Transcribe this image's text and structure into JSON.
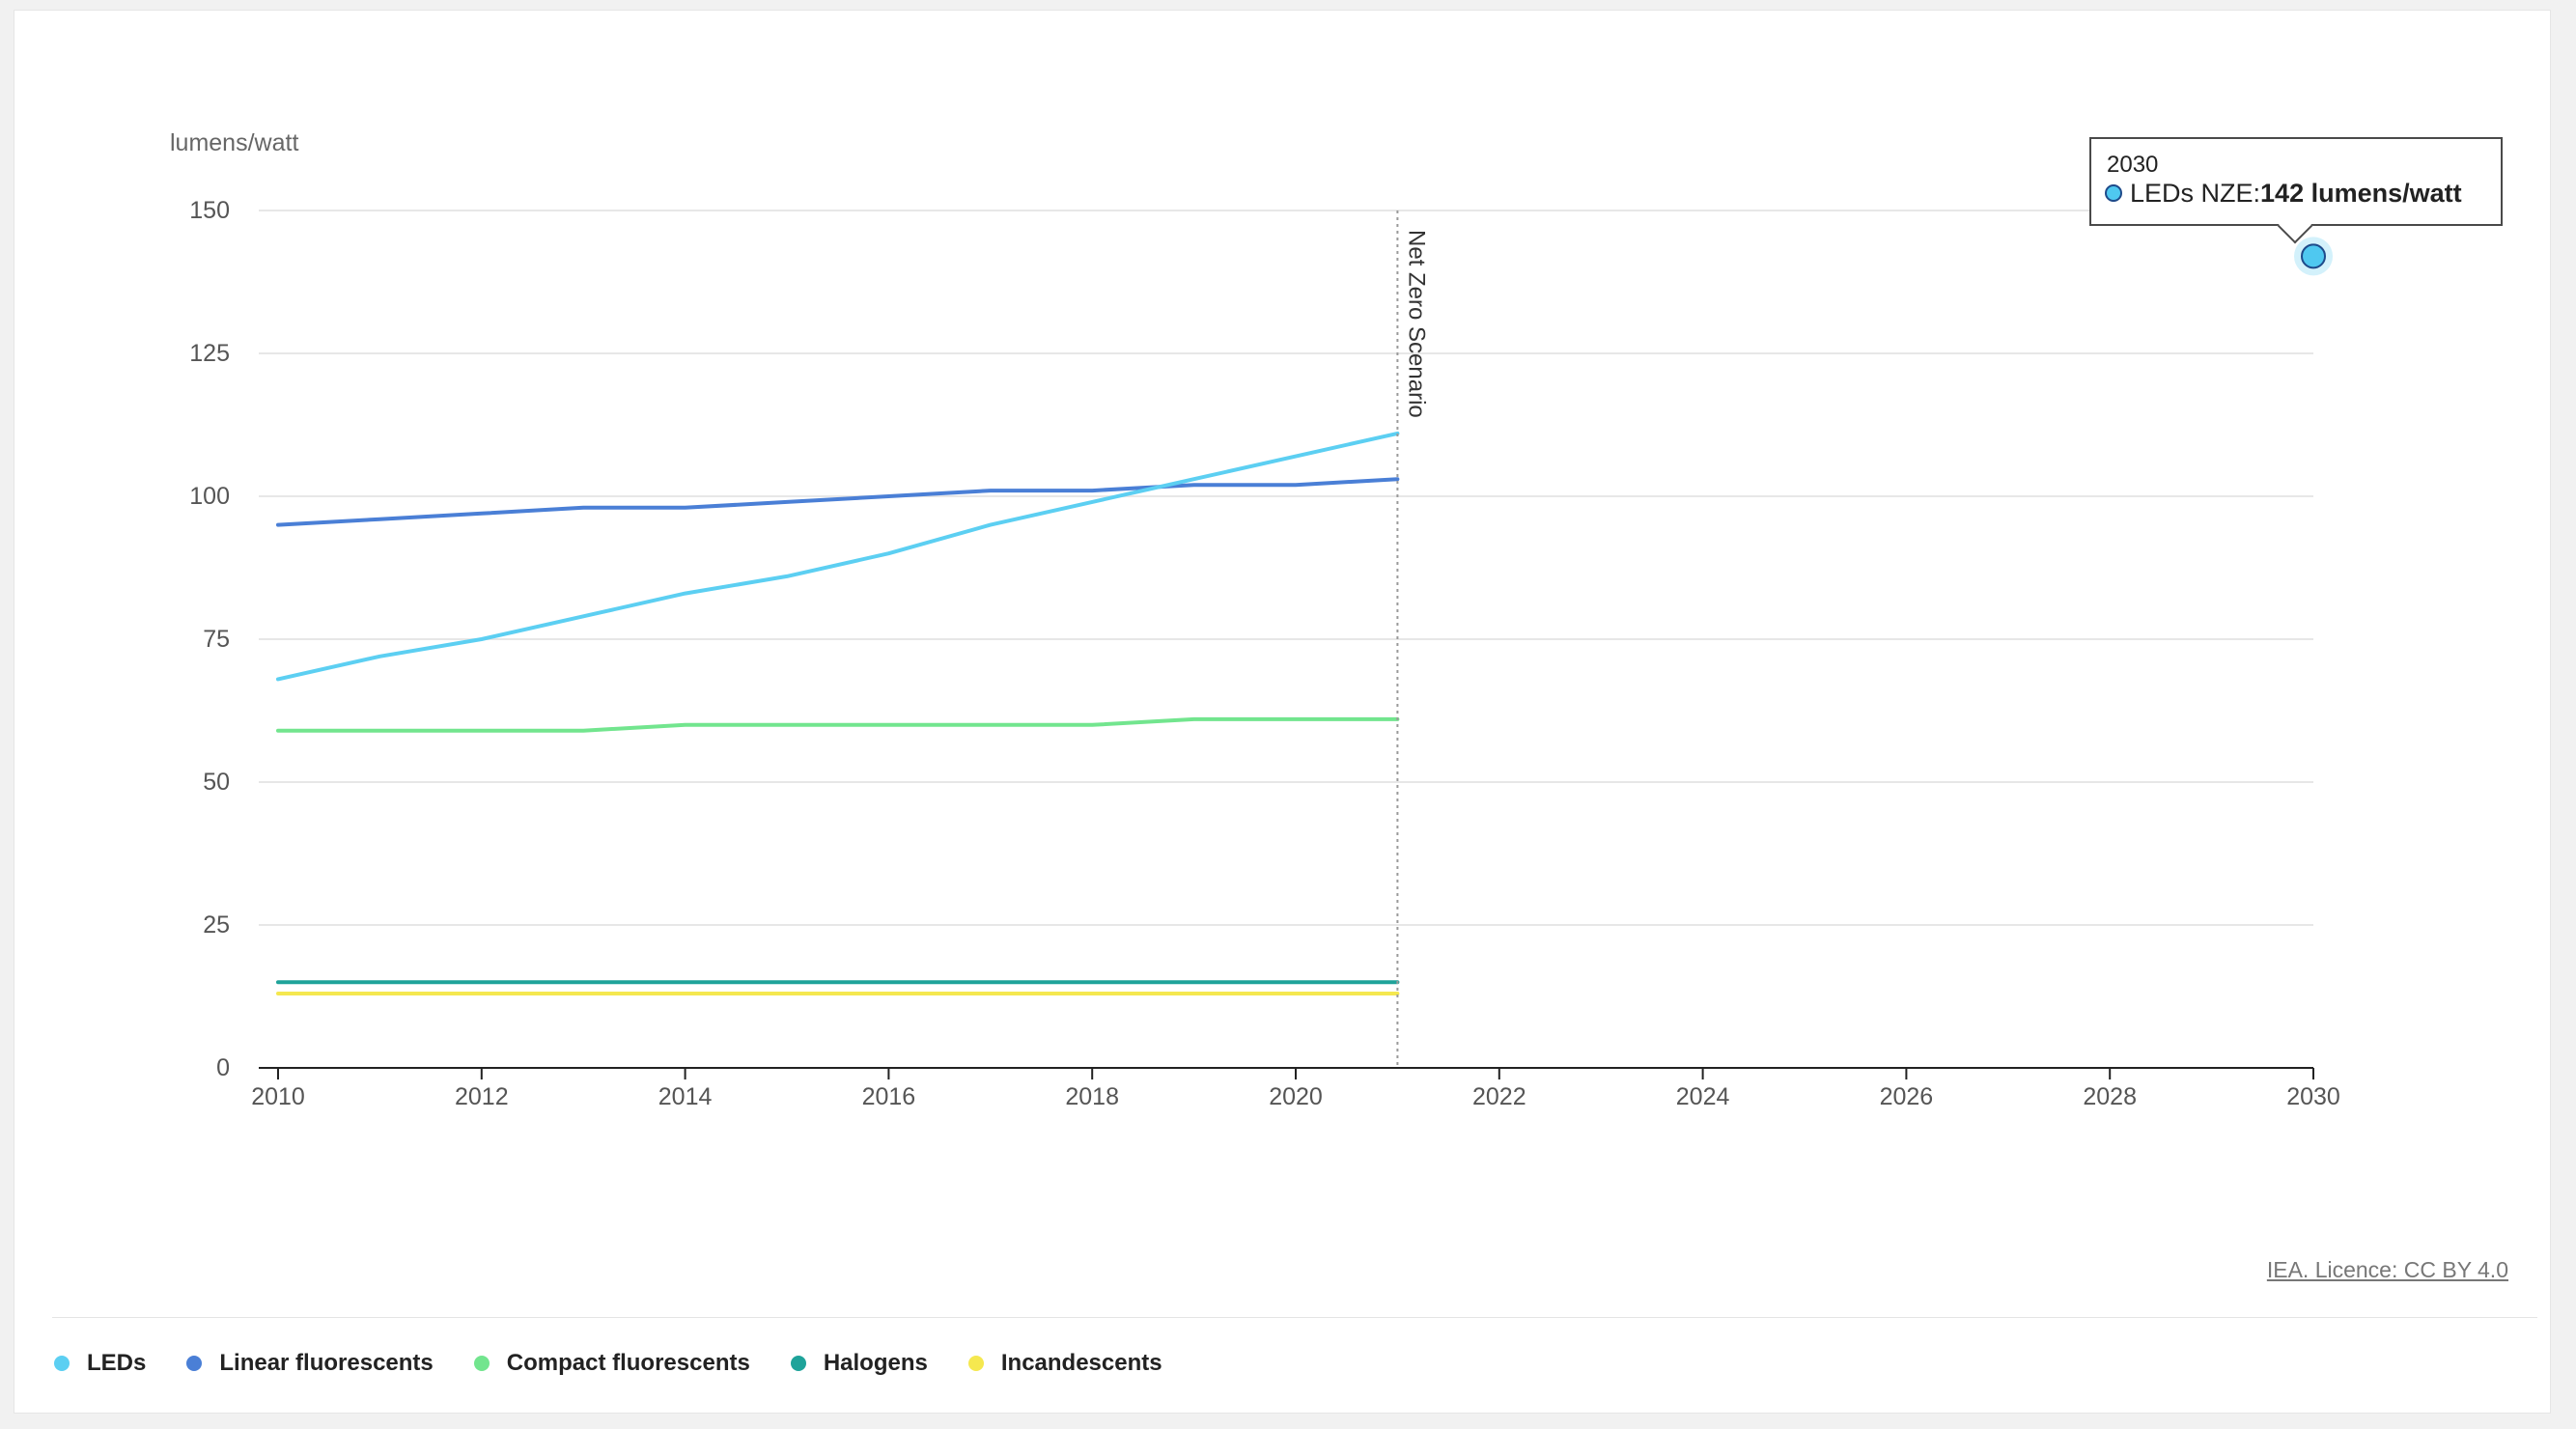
{
  "chart_data": {
    "type": "line",
    "ylabel": "lumens/watt",
    "ylim": [
      0,
      150
    ],
    "yticks": [
      0,
      25,
      50,
      75,
      100,
      125,
      150
    ],
    "xlim": [
      2010,
      2030
    ],
    "xticks": [
      2010,
      2012,
      2014,
      2016,
      2018,
      2020,
      2022,
      2024,
      2026,
      2028,
      2030
    ],
    "grid": true,
    "legend_position": "bottom-left",
    "x": [
      2010,
      2011,
      2012,
      2013,
      2014,
      2015,
      2016,
      2017,
      2018,
      2019,
      2020,
      2021
    ],
    "series": [
      {
        "name": "LEDs",
        "color": "#5ccff2",
        "values": [
          68,
          72,
          75,
          79,
          83,
          86,
          90,
          95,
          99,
          103,
          107,
          111
        ]
      },
      {
        "name": "Linear fluorescents",
        "color": "#4a7fd6",
        "values": [
          95,
          96,
          97,
          98,
          98,
          99,
          100,
          101,
          101,
          102,
          102,
          103
        ]
      },
      {
        "name": "Compact fluorescents",
        "color": "#72e58e",
        "values": [
          59,
          59,
          59,
          59,
          60,
          60,
          60,
          60,
          60,
          61,
          61,
          61
        ]
      },
      {
        "name": "Halogens",
        "color": "#1ea39a",
        "values": [
          15,
          15,
          15,
          15,
          15,
          15,
          15,
          15,
          15,
          15,
          15,
          15
        ]
      },
      {
        "name": "Incandescents",
        "color": "#f5e84f",
        "values": [
          13,
          13,
          13,
          13,
          13,
          13,
          13,
          13,
          13,
          13,
          13,
          13
        ]
      }
    ],
    "scenario_points": [
      {
        "name": "LEDs NZE",
        "x": 2030,
        "y": 142,
        "color": "#4fc8f0"
      }
    ],
    "annotations": [
      {
        "type": "vertical-line",
        "x": 2021,
        "text": "Net Zero Scenario"
      }
    ]
  },
  "tooltip": {
    "year": "2030",
    "series_label": "LEDs NZE: ",
    "value_text": "142 lumens/watt",
    "color": "#4fc8f0"
  },
  "credit": "IEA. Licence: CC BY 4.0"
}
